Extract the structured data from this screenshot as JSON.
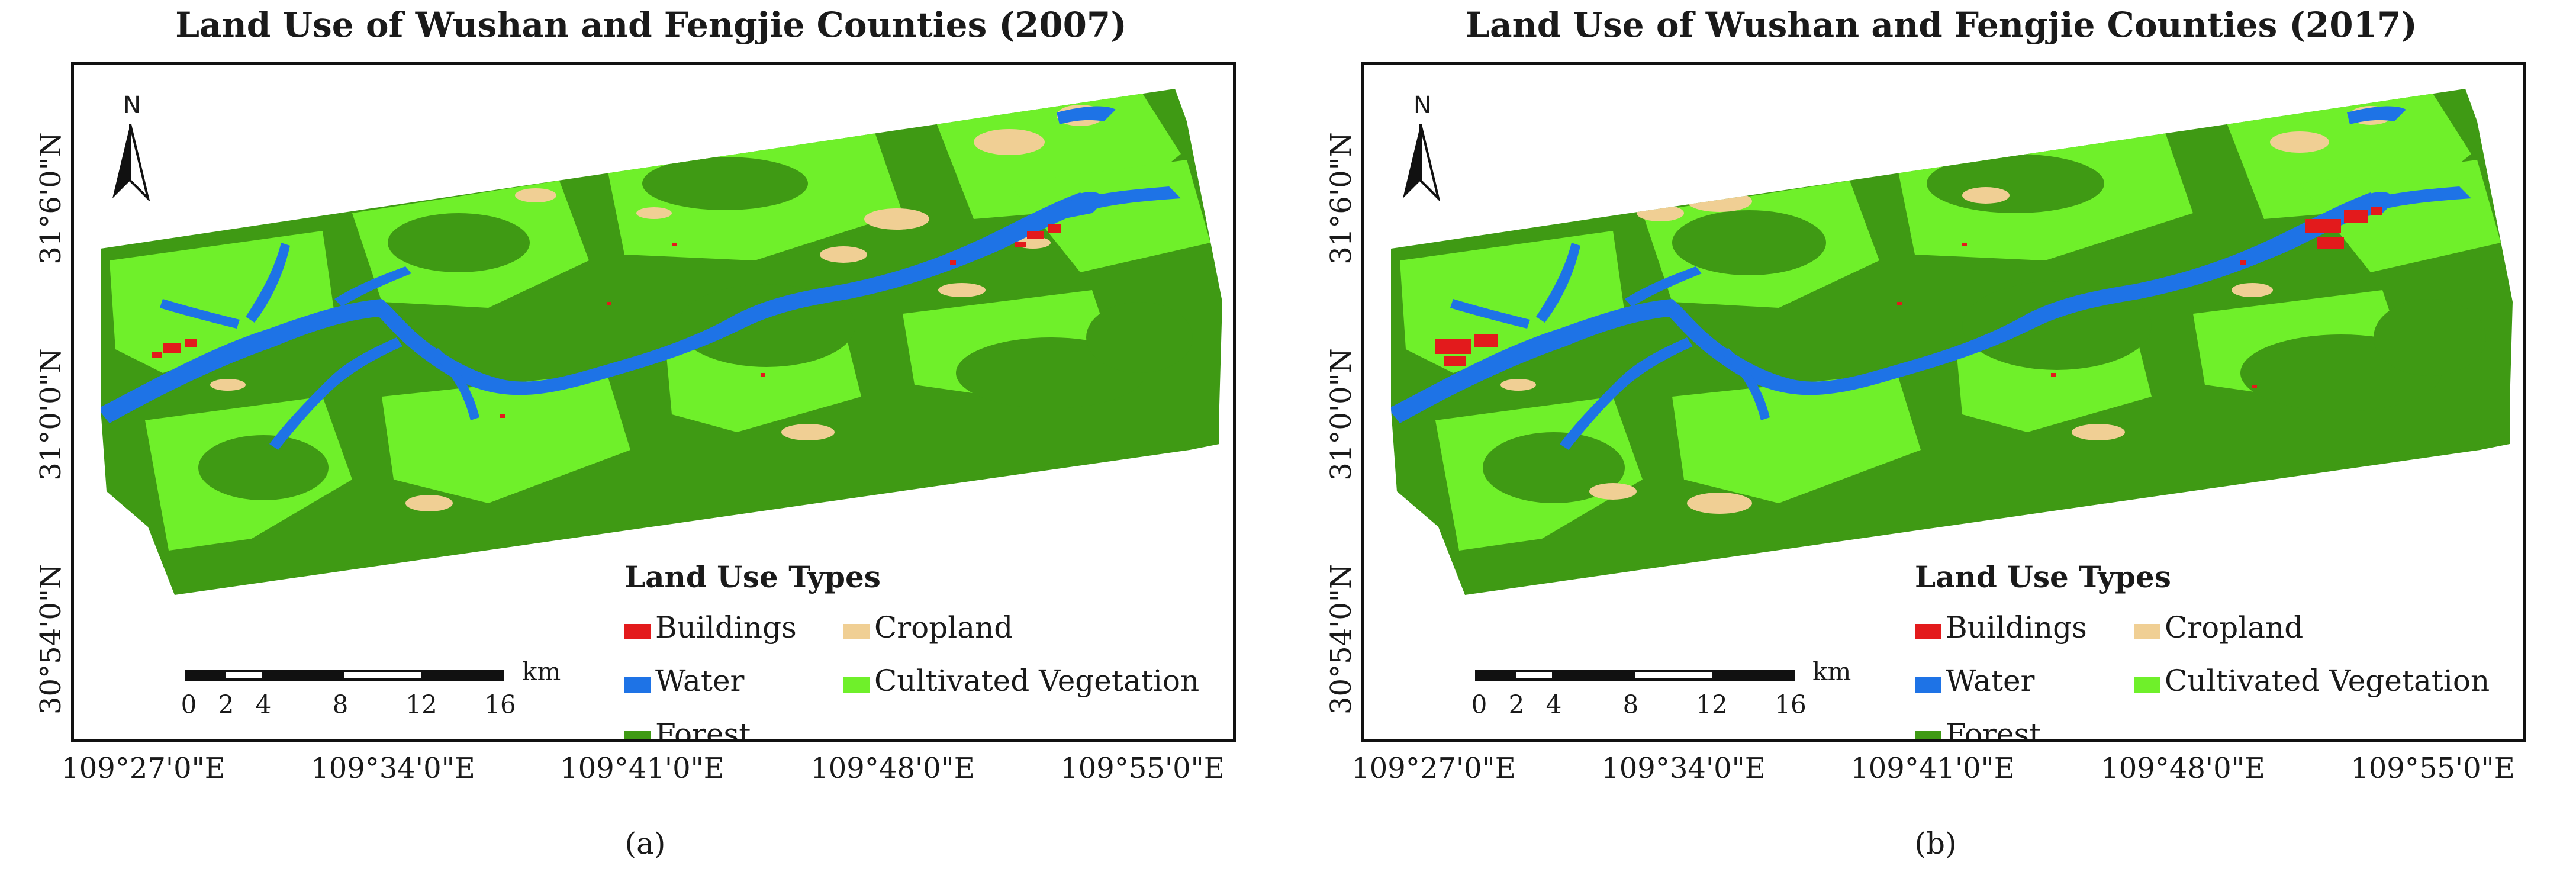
{
  "figure": {
    "colors": {
      "buildings": "#e31a1c",
      "cropland": "#f0cf94",
      "water": "#1e73e6",
      "cultivated_vegetation": "#6ff02a",
      "forest": "#3f9a14"
    },
    "panels": [
      {
        "title": "Land Use of Wushan and Fengjie Counties (2007)",
        "caption": "(a)",
        "year": 2007
      },
      {
        "title": "Land Use of Wushan and Fengjie Counties (2017)",
        "caption": "(b)",
        "year": 2017
      }
    ],
    "north_arrow_label": "N",
    "latitude_labels": [
      "31°6'0\"N",
      "31°0'0\"N",
      "30°54'0\"N"
    ],
    "longitude_labels": [
      "109°27'0\"E",
      "109°34'0\"E",
      "109°41'0\"E",
      "109°48'0\"E",
      "109°55'0\"E"
    ],
    "scale_bar": {
      "unit": "km",
      "ticks": [
        "0",
        "2",
        "4",
        "8",
        "12",
        "16"
      ],
      "tick_values": [
        0,
        2,
        4,
        8,
        12,
        16
      ]
    },
    "legend": {
      "title": "Land Use Types",
      "items": [
        {
          "label": "Buildings",
          "icon": "buildings-swatch"
        },
        {
          "label": "Cropland",
          "icon": "cropland-swatch"
        },
        {
          "label": "Water",
          "icon": "water-swatch"
        },
        {
          "label": "Cultivated Vegetation",
          "icon": "cultivated-vegetation-swatch"
        },
        {
          "label": "Forest",
          "icon": "forest-swatch"
        }
      ]
    }
  }
}
